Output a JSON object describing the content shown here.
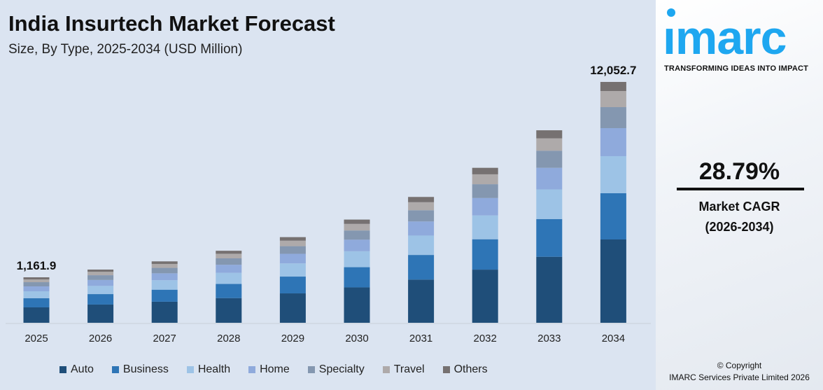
{
  "title": "India Insurtech Market Forecast",
  "subtitle": "Size, By Type, 2025-2034 (USD Million)",
  "chart_data": {
    "type": "bar",
    "stacked": true,
    "categories": [
      "2025",
      "2026",
      "2027",
      "2028",
      "2029",
      "2030",
      "2031",
      "2032",
      "2033",
      "2034"
    ],
    "series": [
      {
        "name": "Auto",
        "color": "#1f4e79",
        "values": [
          393.8,
          546,
          703,
          906,
          1167,
          1502,
          1935,
          2492,
          3209,
          4170
        ]
      },
      {
        "name": "Business",
        "color": "#2e75b6",
        "values": [
          232,
          312,
          402,
          518,
          667,
          858,
          1106,
          1424,
          1834,
          2312
        ]
      },
      {
        "name": "Health",
        "color": "#9dc3e6",
        "values": [
          179,
          245,
          316,
          407,
          524,
          675,
          869,
          1119,
          1441,
          1857
        ]
      },
      {
        "name": "Home",
        "color": "#8faadc",
        "values": [
          125,
          178,
          230,
          296,
          381,
          491,
          632,
          814,
          1048,
          1402
        ]
      },
      {
        "name": "Specialty",
        "color": "#8497b0",
        "values": [
          107,
          142,
          182,
          235,
          303,
          390,
          502,
          647,
          833,
          1051
        ]
      },
      {
        "name": "Travel",
        "color": "#aeaaaa",
        "values": [
          71.5,
          102,
          131,
          169,
          218,
          280,
          361,
          465,
          599,
          806
        ]
      },
      {
        "name": "Others",
        "color": "#767171",
        "values": [
          53.6,
          67,
          86,
          110,
          141,
          184,
          236,
          304,
          393,
          454.7
        ]
      }
    ],
    "data_labels": [
      {
        "category": "2025",
        "text": "1,161.9"
      },
      {
        "category": "2034",
        "text": "12,052.7"
      }
    ],
    "grid": false,
    "legend": "bottom"
  },
  "brand": {
    "logo": "imarc",
    "tagline": "TRANSFORMING IDEAS INTO IMPACT",
    "color": "#1ea7f0"
  },
  "cagr": {
    "value": "28.79%",
    "label": "Market CAGR",
    "period": "(2026-2034)"
  },
  "copyright": {
    "line1": "© Copyright",
    "line2": "IMARC Services Private Limited 2026"
  }
}
